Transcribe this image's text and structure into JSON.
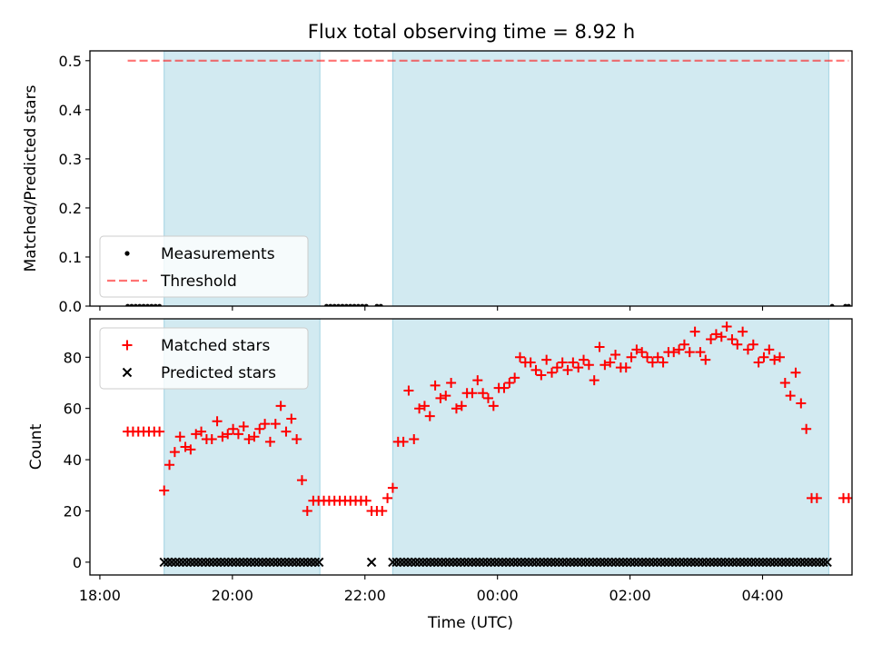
{
  "chart_data": {
    "title": "Flux total observing time = 8.92 h",
    "xlabel": "Time (UTC)",
    "x_ticks": [
      "18:00",
      "20:00",
      "22:00",
      "00:00",
      "02:00",
      "04:00"
    ],
    "x_units": "hours since 18:00 UTC",
    "xlim": [
      -0.15,
      11.35
    ],
    "shaded_intervals": [
      [
        0.97,
        3.32
      ],
      [
        4.42,
        11.0
      ]
    ],
    "colors": {
      "shade": "#add8e6",
      "matched": "#ff0000",
      "predicted": "#000000",
      "threshold": "#ff0000"
    },
    "panels": [
      {
        "type": "scatter",
        "ylabel": "Matched/Predicted stars",
        "ylim": [
          0,
          0.52
        ],
        "yticks": [
          "0.0",
          "0.1",
          "0.2",
          "0.3",
          "0.4",
          "0.5"
        ],
        "legend_loc": "lower-left",
        "series": [
          {
            "name": "Measurements",
            "marker": "dot",
            "x": [
              0.42,
              0.48,
              0.54,
              0.6,
              0.66,
              0.72,
              0.78,
              0.84,
              0.9,
              3.42,
              3.48,
              3.54,
              3.6,
              3.66,
              3.72,
              3.78,
              3.84,
              3.9,
              3.96,
              4.02,
              4.18,
              4.24,
              11.05,
              11.25,
              11.3
            ],
            "y": 0
          },
          {
            "name": "Threshold",
            "style": "dashed",
            "x": [
              0.42,
              11.3
            ],
            "y": [
              0.5,
              0.5
            ]
          }
        ]
      },
      {
        "type": "scatter",
        "ylabel": "Count",
        "ylim": [
          -5,
          95
        ],
        "yticks": [
          "0",
          "20",
          "40",
          "60",
          "80"
        ],
        "legend_loc": "upper-left",
        "series": [
          {
            "name": "Matched stars",
            "marker": "plus",
            "points": [
              [
                0.42,
                51
              ],
              [
                0.5,
                51
              ],
              [
                0.58,
                51
              ],
              [
                0.66,
                51
              ],
              [
                0.74,
                51
              ],
              [
                0.82,
                51
              ],
              [
                0.9,
                51
              ],
              [
                0.97,
                28
              ],
              [
                1.05,
                38
              ],
              [
                1.13,
                43
              ],
              [
                1.21,
                49
              ],
              [
                1.29,
                45
              ],
              [
                1.37,
                44
              ],
              [
                1.45,
                50
              ],
              [
                1.53,
                51
              ],
              [
                1.61,
                48
              ],
              [
                1.69,
                48
              ],
              [
                1.77,
                55
              ],
              [
                1.85,
                49
              ],
              [
                1.93,
                50
              ],
              [
                2.01,
                52
              ],
              [
                2.09,
                50
              ],
              [
                2.17,
                53
              ],
              [
                2.25,
                48
              ],
              [
                2.33,
                49
              ],
              [
                2.41,
                52
              ],
              [
                2.49,
                54
              ],
              [
                2.57,
                47
              ],
              [
                2.65,
                54
              ],
              [
                2.73,
                61
              ],
              [
                2.81,
                51
              ],
              [
                2.89,
                56
              ],
              [
                2.97,
                48
              ],
              [
                3.05,
                32
              ],
              [
                3.13,
                20
              ],
              [
                3.22,
                24
              ],
              [
                3.3,
                24
              ],
              [
                3.38,
                24
              ],
              [
                3.46,
                24
              ],
              [
                3.54,
                24
              ],
              [
                3.62,
                24
              ],
              [
                3.7,
                24
              ],
              [
                3.78,
                24
              ],
              [
                3.86,
                24
              ],
              [
                3.94,
                24
              ],
              [
                4.02,
                24
              ],
              [
                4.1,
                20
              ],
              [
                4.18,
                20
              ],
              [
                4.26,
                20
              ],
              [
                4.34,
                25
              ],
              [
                4.42,
                29
              ],
              [
                4.5,
                47
              ],
              [
                4.58,
                47
              ],
              [
                4.66,
                67
              ],
              [
                4.74,
                48
              ],
              [
                4.82,
                60
              ],
              [
                4.9,
                61
              ],
              [
                4.98,
                57
              ],
              [
                5.06,
                69
              ],
              [
                5.14,
                64
              ],
              [
                5.22,
                65
              ],
              [
                5.3,
                70
              ],
              [
                5.38,
                60
              ],
              [
                5.46,
                61
              ],
              [
                5.54,
                66
              ],
              [
                5.62,
                66
              ],
              [
                5.7,
                71
              ],
              [
                5.78,
                66
              ],
              [
                5.86,
                64
              ],
              [
                5.94,
                61
              ],
              [
                6.02,
                68
              ],
              [
                6.1,
                68
              ],
              [
                6.18,
                70
              ],
              [
                6.26,
                72
              ],
              [
                6.34,
                80
              ],
              [
                6.42,
                78
              ],
              [
                6.5,
                78
              ],
              [
                6.58,
                75
              ],
              [
                6.66,
                73
              ],
              [
                6.74,
                79
              ],
              [
                6.82,
                74
              ],
              [
                6.9,
                76
              ],
              [
                6.98,
                78
              ],
              [
                7.06,
                75
              ],
              [
                7.14,
                78
              ],
              [
                7.22,
                76
              ],
              [
                7.3,
                79
              ],
              [
                7.38,
                77
              ],
              [
                7.46,
                71
              ],
              [
                7.54,
                84
              ],
              [
                7.62,
                77
              ],
              [
                7.7,
                78
              ],
              [
                7.78,
                81
              ],
              [
                7.86,
                76
              ],
              [
                7.94,
                76
              ],
              [
                8.02,
                80
              ],
              [
                8.1,
                83
              ],
              [
                8.18,
                82
              ],
              [
                8.26,
                80
              ],
              [
                8.34,
                78
              ],
              [
                8.42,
                80
              ],
              [
                8.5,
                78
              ],
              [
                8.58,
                82
              ],
              [
                8.66,
                82
              ],
              [
                8.74,
                83
              ],
              [
                8.82,
                85
              ],
              [
                8.9,
                82
              ],
              [
                8.98,
                90
              ],
              [
                9.06,
                82
              ],
              [
                9.14,
                79
              ],
              [
                9.22,
                87
              ],
              [
                9.3,
                89
              ],
              [
                9.38,
                88
              ],
              [
                9.46,
                92
              ],
              [
                9.54,
                87
              ],
              [
                9.62,
                85
              ],
              [
                9.7,
                90
              ],
              [
                9.78,
                83
              ],
              [
                9.86,
                85
              ],
              [
                9.94,
                78
              ],
              [
                10.02,
                80
              ],
              [
                10.1,
                83
              ],
              [
                10.18,
                79
              ],
              [
                10.26,
                80
              ],
              [
                10.34,
                70
              ],
              [
                10.42,
                65
              ],
              [
                10.5,
                74
              ],
              [
                10.58,
                62
              ],
              [
                10.66,
                52
              ],
              [
                10.74,
                25
              ],
              [
                10.82,
                25
              ],
              [
                11.22,
                25
              ],
              [
                11.3,
                25
              ]
            ]
          },
          {
            "name": "Predicted stars",
            "marker": "x",
            "y": 0,
            "x_runs": [
              [
                0.97,
                3.32,
                0.057
              ],
              [
                4.1,
                4.1,
                1
              ],
              [
                4.42,
                11.0,
                0.057
              ]
            ]
          }
        ]
      }
    ]
  }
}
